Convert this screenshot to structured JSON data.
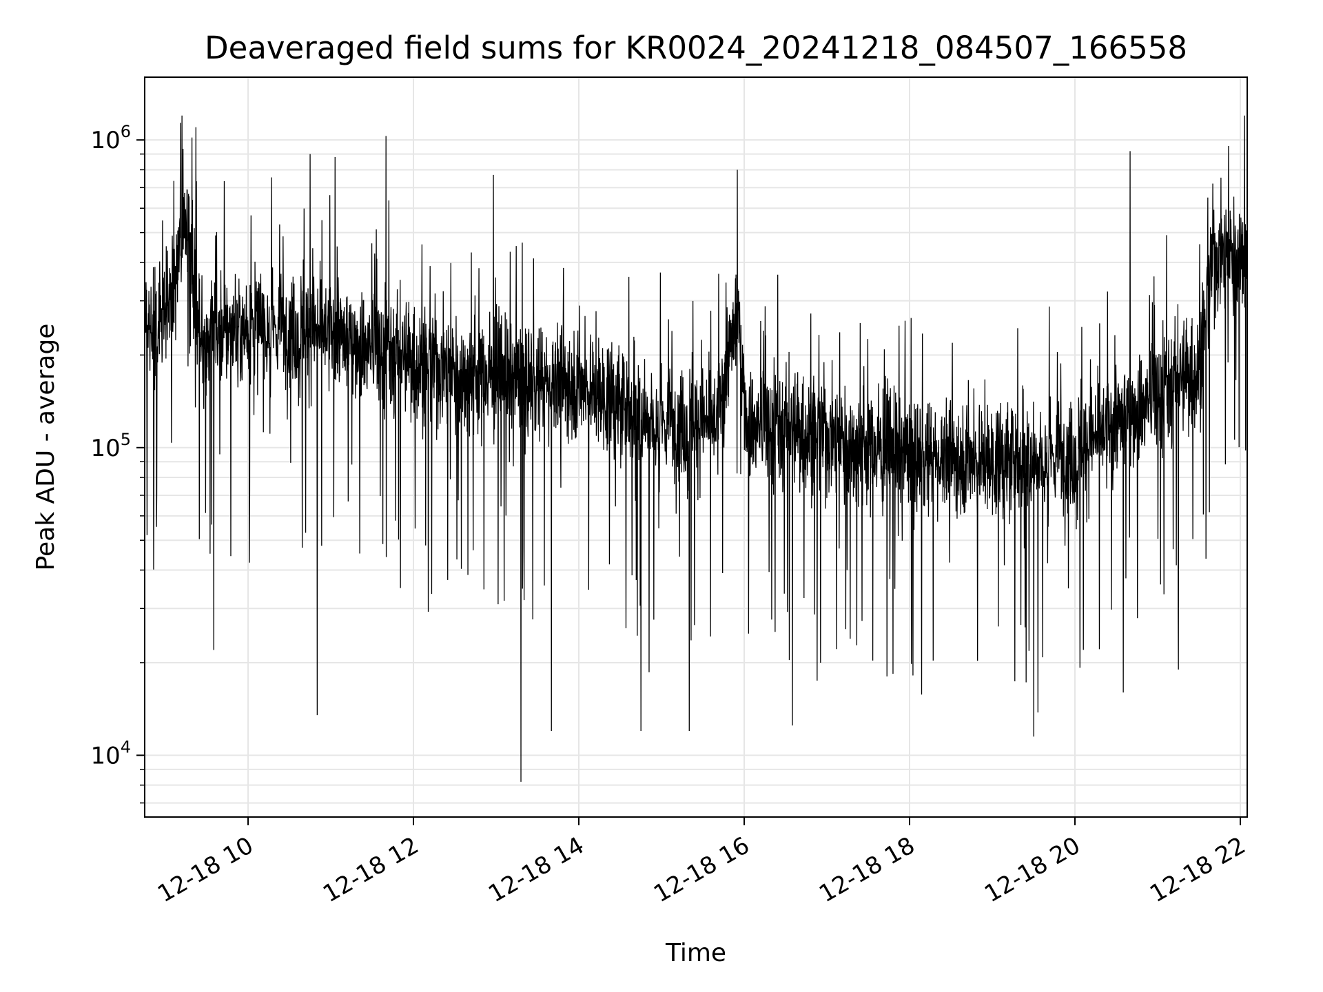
{
  "chart_data": {
    "type": "line",
    "title": "Deaveraged field sums for KR0024_20241218_084507_166558",
    "xlabel": "Time",
    "ylabel": "Peak ADU - average",
    "x_range": [
      "12-18 08:45",
      "12-18 22:05"
    ],
    "y_range": [
      6300,
      1600000
    ],
    "y_scale": "log",
    "grid": true,
    "line_color": "#000000",
    "grid_color": "#e6e6e6",
    "x_ticks": [
      {
        "label": "12-18 10",
        "value": "12-18 10:00"
      },
      {
        "label": "12-18 12",
        "value": "12-18 12:00"
      },
      {
        "label": "12-18 14",
        "value": "12-18 14:00"
      },
      {
        "label": "12-18 16",
        "value": "12-18 16:00"
      },
      {
        "label": "12-18 18",
        "value": "12-18 18:00"
      },
      {
        "label": "12-18 20",
        "value": "12-18 20:00"
      },
      {
        "label": "12-18 22",
        "value": "12-18 22:00"
      }
    ],
    "y_ticks": [
      {
        "base": "10",
        "exp": "4",
        "value": 10000
      },
      {
        "base": "10",
        "exp": "5",
        "value": 100000
      },
      {
        "base": "10",
        "exp": "6",
        "value": 1000000
      }
    ],
    "trend": [
      {
        "t": "12-18 08:45",
        "y": 250000
      },
      {
        "t": "12-18 09:05",
        "y": 300000
      },
      {
        "t": "12-18 09:15",
        "y": 600000
      },
      {
        "t": "12-18 09:25",
        "y": 230000
      },
      {
        "t": "12-18 10:00",
        "y": 250000
      },
      {
        "t": "12-18 11:00",
        "y": 235000
      },
      {
        "t": "12-18 12:00",
        "y": 190000
      },
      {
        "t": "12-18 13:00",
        "y": 170000
      },
      {
        "t": "12-18 14:00",
        "y": 160000
      },
      {
        "t": "12-18 15:00",
        "y": 120000
      },
      {
        "t": "12-18 15:40",
        "y": 120000
      },
      {
        "t": "12-18 15:55",
        "y": 280000
      },
      {
        "t": "12-18 16:02",
        "y": 120000
      },
      {
        "t": "12-18 17:00",
        "y": 110000
      },
      {
        "t": "12-18 18:00",
        "y": 95000
      },
      {
        "t": "12-18 19:00",
        "y": 90000
      },
      {
        "t": "12-18 20:00",
        "y": 95000
      },
      {
        "t": "12-18 20:30",
        "y": 120000
      },
      {
        "t": "12-18 21:00",
        "y": 150000
      },
      {
        "t": "12-18 21:30",
        "y": 180000
      },
      {
        "t": "12-18 21:40",
        "y": 420000
      },
      {
        "t": "12-18 22:05",
        "y": 450000
      }
    ],
    "spikes_max": [
      {
        "t": "12-18 09:12",
        "y": 1200000
      },
      {
        "t": "12-18 09:22",
        "y": 1100000
      },
      {
        "t": "12-18 10:45",
        "y": 900000
      },
      {
        "t": "12-18 11:03",
        "y": 880000
      },
      {
        "t": "12-18 11:40",
        "y": 1030000
      },
      {
        "t": "12-18 12:58",
        "y": 770000
      },
      {
        "t": "12-18 15:55",
        "y": 800000
      },
      {
        "t": "12-18 20:40",
        "y": 920000
      },
      {
        "t": "12-18 22:03",
        "y": 1200000
      }
    ],
    "spikes_min": [
      {
        "t": "12-18 09:35",
        "y": 22000
      },
      {
        "t": "12-18 10:50",
        "y": 13500
      },
      {
        "t": "12-18 13:18",
        "y": 8200
      },
      {
        "t": "12-18 13:40",
        "y": 12000
      },
      {
        "t": "12-18 14:45",
        "y": 12000
      },
      {
        "t": "12-18 15:20",
        "y": 12000
      },
      {
        "t": "12-18 16:35",
        "y": 12500
      },
      {
        "t": "12-18 19:30",
        "y": 11500
      },
      {
        "t": "12-18 20:35",
        "y": 16000
      },
      {
        "t": "12-18 21:15",
        "y": 19000
      }
    ]
  }
}
